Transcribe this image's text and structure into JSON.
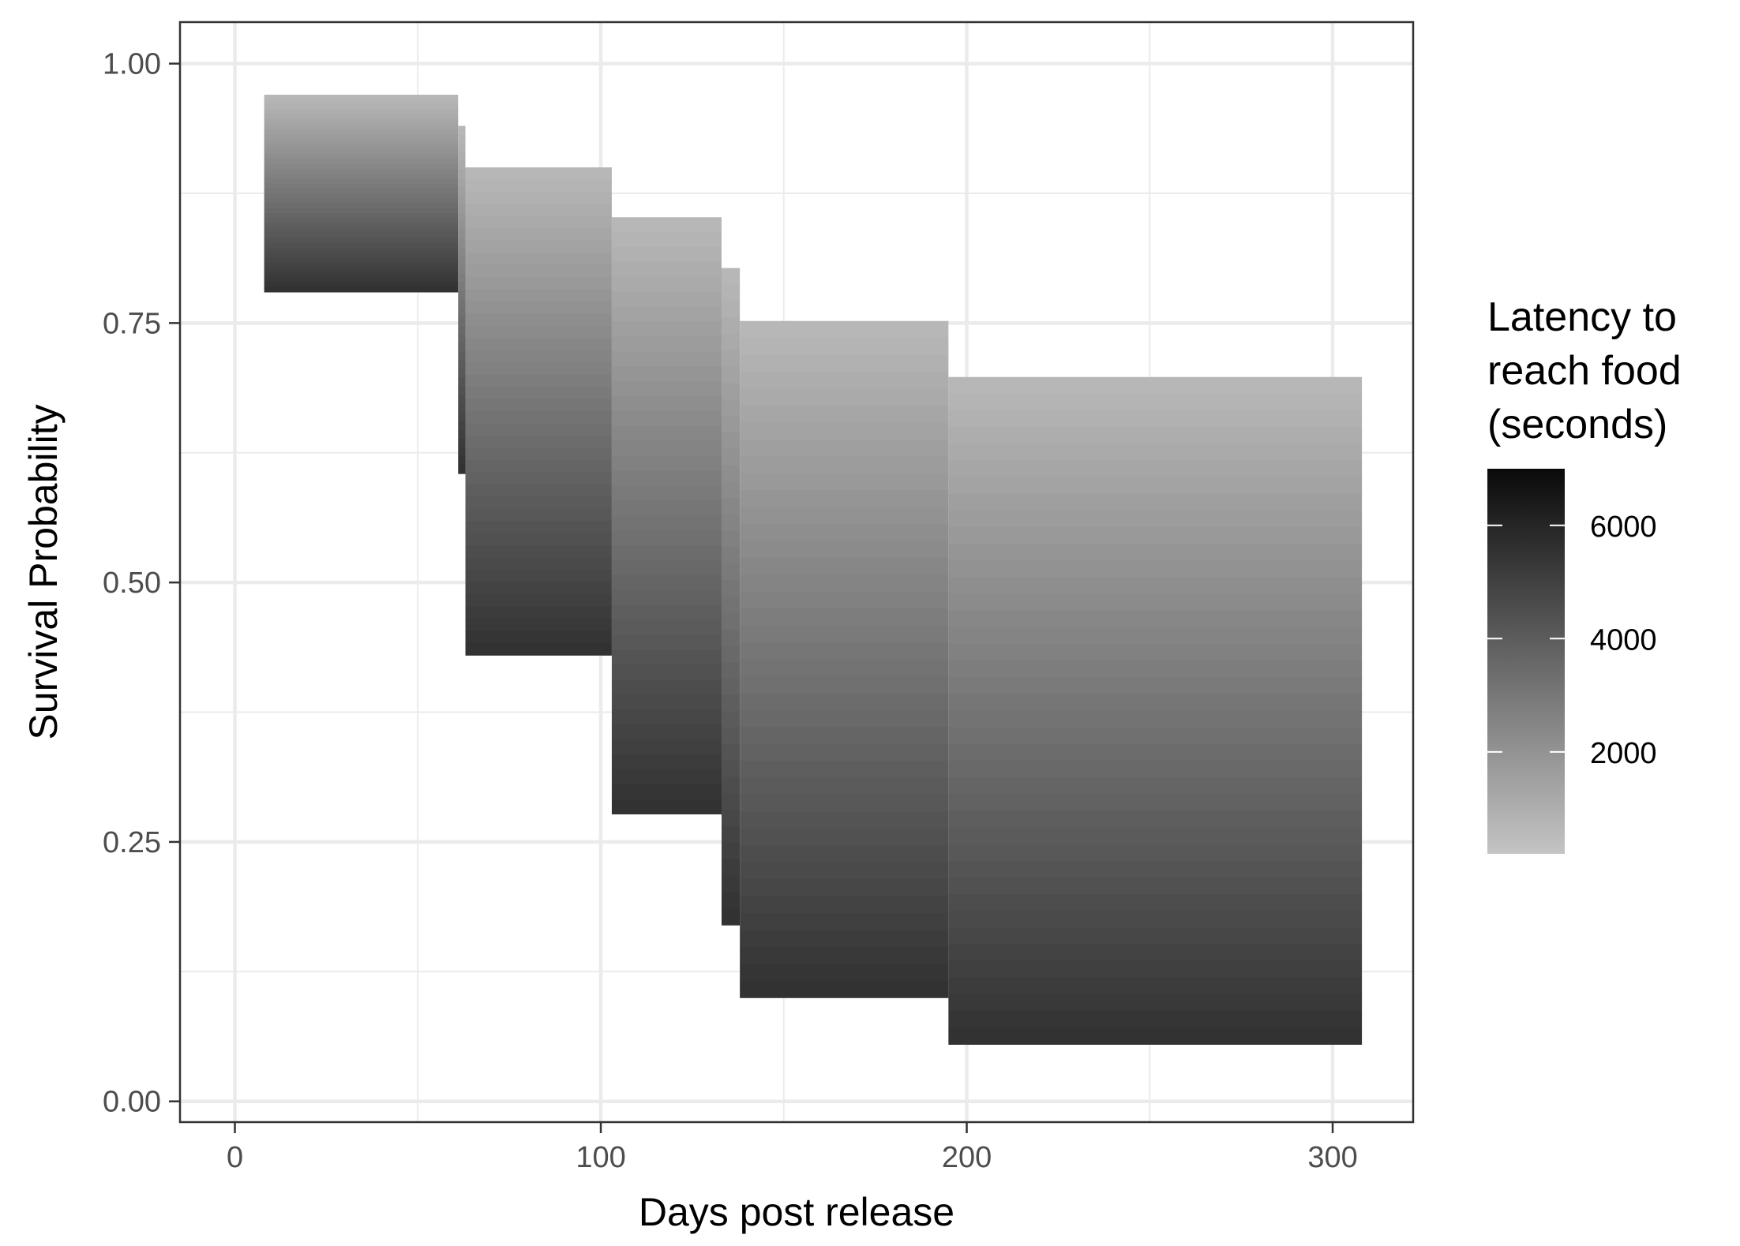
{
  "chart_data": {
    "type": "bar",
    "xlabel": "Days post release",
    "ylabel": "Survival Probability",
    "xlim": [
      -15,
      322
    ],
    "ylim": [
      -0.02,
      1.04
    ],
    "x_ticks": [
      0,
      100,
      200,
      300
    ],
    "x_tick_labels": [
      "0",
      "100",
      "200",
      "300"
    ],
    "y_ticks": [
      0,
      0.25,
      0.5,
      0.75,
      1.0
    ],
    "y_tick_labels": [
      "0.00",
      "0.25",
      "0.50",
      "0.75",
      "1.00"
    ],
    "grid": true,
    "legend": {
      "title": [
        "Latency to",
        "reach food",
        "(seconds)"
      ],
      "position": "right",
      "color_range": [
        200,
        7000
      ],
      "colors": {
        "low": "#c4c4c4",
        "high": "#0a0a0a"
      },
      "ticks": [
        2000,
        4000,
        6000
      ],
      "tick_labels": [
        "2000",
        "4000",
        "6000"
      ]
    },
    "rects": [
      {
        "x_start": 8,
        "x_end": 61,
        "y_bottom": 0.78,
        "y_top": 0.97,
        "latency_top": 600,
        "latency_bottom": 5600
      },
      {
        "x_start": 61,
        "x_end": 63,
        "y_bottom": 0.605,
        "y_top": 0.94,
        "latency_top": 600,
        "latency_bottom": 5600
      },
      {
        "x_start": 63,
        "x_end": 103,
        "y_bottom": 0.43,
        "y_top": 0.9,
        "latency_top": 600,
        "latency_bottom": 5600
      },
      {
        "x_start": 103,
        "x_end": 133,
        "y_bottom": 0.277,
        "y_top": 0.852,
        "latency_top": 600,
        "latency_bottom": 5600
      },
      {
        "x_start": 133,
        "x_end": 138,
        "y_bottom": 0.17,
        "y_top": 0.803,
        "latency_top": 600,
        "latency_bottom": 5600
      },
      {
        "x_start": 138,
        "x_end": 195,
        "y_bottom": 0.1,
        "y_top": 0.752,
        "latency_top": 600,
        "latency_bottom": 5600
      },
      {
        "x_start": 195,
        "x_end": 308,
        "y_bottom": 0.055,
        "y_top": 0.698,
        "latency_top": 600,
        "latency_bottom": 5600
      }
    ]
  }
}
